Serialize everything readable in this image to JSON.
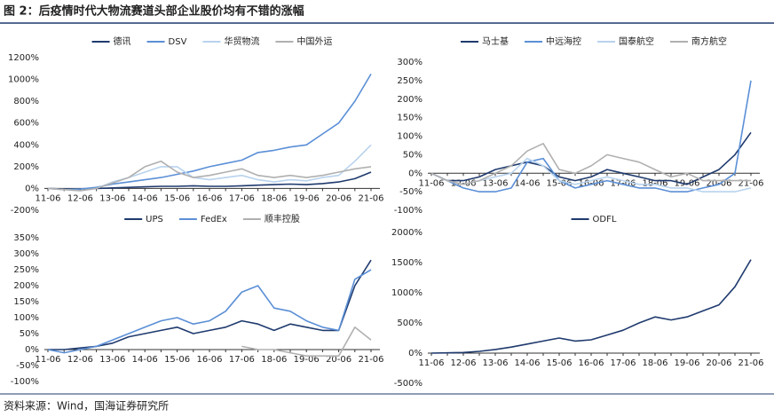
{
  "title": "图 2：后疫情时代大物流赛道头部企业股价均有不错的涨幅",
  "source": "资料来源：Wind，国海证券研究所",
  "chart_data": [
    {
      "type": "line",
      "categories": [
        "11-06",
        null,
        "12-06",
        null,
        "13-06",
        null,
        "14-06",
        null,
        "15-06",
        null,
        "16-06",
        null,
        "17-06",
        null,
        "18-06",
        null,
        "19-06",
        null,
        "20-06",
        null,
        "21-06"
      ],
      "ylim": [
        -200,
        1200
      ],
      "yticks": [
        {
          "value": -200,
          "label": "-200%"
        },
        {
          "value": 0,
          "label": "0%"
        },
        {
          "value": 200,
          "label": "200%"
        },
        {
          "value": 400,
          "label": "400%"
        },
        {
          "value": 600,
          "label": "600%"
        },
        {
          "value": 800,
          "label": "800%"
        },
        {
          "value": 1000,
          "label": "1000%"
        },
        {
          "value": 1200,
          "label": "1200%"
        }
      ],
      "series": [
        {
          "name": "德讯",
          "color": "#1f3a6e",
          "values": [
            0,
            -5,
            -5,
            0,
            5,
            10,
            15,
            20,
            20,
            25,
            20,
            20,
            25,
            30,
            35,
            40,
            35,
            45,
            60,
            90,
            150
          ]
        },
        {
          "name": "DSV",
          "color": "#5b8fd6",
          "values": [
            0,
            -10,
            -5,
            10,
            40,
            60,
            80,
            100,
            130,
            160,
            200,
            230,
            260,
            330,
            350,
            380,
            400,
            500,
            600,
            800,
            1050
          ]
        },
        {
          "name": "华贸物流",
          "color": "#b8d3ee",
          "values": [
            0,
            -10,
            -20,
            0,
            60,
            100,
            150,
            200,
            200,
            100,
            80,
            100,
            120,
            80,
            60,
            80,
            70,
            100,
            120,
            250,
            400
          ]
        },
        {
          "name": "中国外运",
          "color": "#b0b0b0",
          "values": [
            0,
            -10,
            -20,
            0,
            50,
            100,
            200,
            250,
            150,
            100,
            120,
            150,
            180,
            120,
            100,
            120,
            100,
            120,
            150,
            180,
            200
          ]
        }
      ]
    },
    {
      "type": "line",
      "categories": [
        "11-06",
        null,
        "12-06",
        null,
        "13-06",
        null,
        "14-06",
        null,
        "15-06",
        null,
        "16-06",
        null,
        "17-06",
        null,
        "18-06",
        null,
        "19-06",
        null,
        "20-06",
        null,
        "21-06"
      ],
      "ylim": [
        -100,
        300
      ],
      "yticks": [
        {
          "value": -100,
          "label": "-100%"
        },
        {
          "value": -50,
          "label": "-50%"
        },
        {
          "value": 0,
          "label": "0%"
        },
        {
          "value": 50,
          "label": "50%"
        },
        {
          "value": 100,
          "label": "100%"
        },
        {
          "value": 150,
          "label": "150%"
        },
        {
          "value": 200,
          "label": "200%"
        },
        {
          "value": 250,
          "label": "250%"
        },
        {
          "value": 300,
          "label": "300%"
        }
      ],
      "series": [
        {
          "name": "马士基",
          "color": "#1f3a6e",
          "values": [
            0,
            -20,
            -20,
            -10,
            10,
            20,
            30,
            20,
            -10,
            -20,
            -10,
            10,
            0,
            -10,
            -20,
            -20,
            -30,
            -10,
            10,
            50,
            110
          ]
        },
        {
          "name": "中远海控",
          "color": "#5b8fd6",
          "values": [
            0,
            -20,
            -40,
            -50,
            -50,
            -40,
            30,
            40,
            -20,
            -40,
            -30,
            -20,
            -30,
            -40,
            -40,
            -50,
            -50,
            -40,
            -30,
            0,
            250
          ]
        },
        {
          "name": "国泰航空",
          "color": "#b8d3ee",
          "values": [
            0,
            -20,
            -30,
            -20,
            -10,
            0,
            40,
            20,
            -20,
            -30,
            -20,
            -10,
            -20,
            -30,
            -30,
            -40,
            -40,
            -50,
            -50,
            -50,
            -40
          ]
        },
        {
          "name": "南方航空",
          "color": "#b0b0b0",
          "values": [
            0,
            -20,
            -30,
            -20,
            0,
            20,
            60,
            80,
            10,
            0,
            20,
            50,
            40,
            30,
            10,
            -10,
            0,
            -20,
            -20,
            -20,
            -20
          ]
        }
      ]
    },
    {
      "type": "line",
      "categories": [
        "11-06",
        null,
        "12-06",
        null,
        "13-06",
        null,
        "14-06",
        null,
        "15-06",
        null,
        "16-06",
        null,
        "17-06",
        null,
        "18-06",
        null,
        "19-06",
        null,
        "20-06",
        null,
        "21-06"
      ],
      "ylim": [
        -100,
        350
      ],
      "yticks": [
        {
          "value": -100,
          "label": "-100%"
        },
        {
          "value": -50,
          "label": "-50%"
        },
        {
          "value": 0,
          "label": "0%"
        },
        {
          "value": 50,
          "label": "50%"
        },
        {
          "value": 100,
          "label": "100%"
        },
        {
          "value": 150,
          "label": "150%"
        },
        {
          "value": 200,
          "label": "200%"
        },
        {
          "value": 250,
          "label": "250%"
        },
        {
          "value": 300,
          "label": "300%"
        },
        {
          "value": 350,
          "label": "350%"
        }
      ],
      "series": [
        {
          "name": "UPS",
          "color": "#1f3a6e",
          "values": [
            0,
            0,
            5,
            10,
            20,
            40,
            50,
            60,
            70,
            50,
            60,
            70,
            90,
            80,
            60,
            80,
            70,
            60,
            60,
            200,
            280
          ]
        },
        {
          "name": "FedEx",
          "color": "#5b8fd6",
          "values": [
            0,
            -10,
            0,
            10,
            30,
            50,
            70,
            90,
            100,
            80,
            90,
            120,
            180,
            200,
            130,
            120,
            90,
            70,
            60,
            220,
            250
          ]
        },
        {
          "name": "顺丰控股",
          "color": "#b0b0b0",
          "values": [
            null,
            null,
            null,
            null,
            null,
            null,
            null,
            null,
            null,
            null,
            null,
            null,
            10,
            0,
            0,
            -10,
            -20,
            -20,
            -20,
            70,
            30
          ]
        }
      ]
    },
    {
      "type": "line",
      "categories": [
        "11-06",
        null,
        "12-06",
        null,
        "13-06",
        null,
        "14-06",
        null,
        "15-06",
        null,
        "16-06",
        null,
        "17-06",
        null,
        "18-06",
        null,
        "19-06",
        null,
        "20-06",
        null,
        "21-06"
      ],
      "ylim": [
        -500,
        2000
      ],
      "yticks": [
        {
          "value": -500,
          "label": "-500%"
        },
        {
          "value": 0,
          "label": "0%"
        },
        {
          "value": 500,
          "label": "500%"
        },
        {
          "value": 1000,
          "label": "1000%"
        },
        {
          "value": 1500,
          "label": "1500%"
        },
        {
          "value": 2000,
          "label": "2000%"
        }
      ],
      "series": [
        {
          "name": "ODFL",
          "color": "#1f3a6e",
          "values": [
            0,
            5,
            10,
            30,
            60,
            100,
            150,
            200,
            250,
            200,
            220,
            300,
            380,
            500,
            600,
            550,
            600,
            700,
            800,
            1100,
            1550
          ]
        }
      ]
    }
  ]
}
